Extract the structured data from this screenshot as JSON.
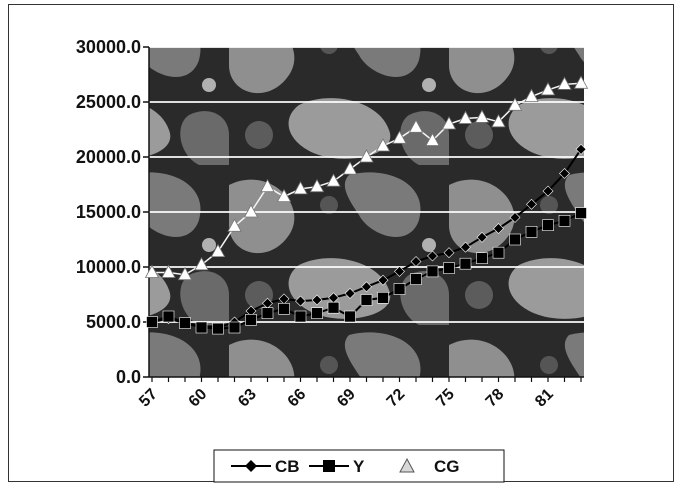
{
  "chart_data": {
    "type": "line",
    "title": "",
    "xlabel": "",
    "ylabel": "",
    "x": [
      57,
      58,
      59,
      60,
      61,
      62,
      63,
      64,
      65,
      66,
      67,
      68,
      69,
      70,
      71,
      72,
      73,
      74,
      75,
      76,
      77,
      78,
      79,
      80,
      81,
      82,
      83
    ],
    "x_tick_labels": [
      "57",
      "60",
      "63",
      "66",
      "69",
      "72",
      "75",
      "78",
      "81"
    ],
    "y_tick_labels": [
      "0.0",
      "5000.0",
      "10000.0",
      "15000.0",
      "20000.0",
      "25000.0",
      "30000.0"
    ],
    "ylim": [
      0,
      30000
    ],
    "grid": "horizontal",
    "legend_position": "bottom",
    "series": [
      {
        "name": "CB",
        "marker": "diamond",
        "color": "#000000",
        "values": [
          5000,
          5300,
          4900,
          4600,
          4500,
          5000,
          6000,
          6700,
          7100,
          6900,
          7000,
          7200,
          7600,
          8200,
          8800,
          9600,
          10500,
          11000,
          11300,
          11800,
          12700,
          13500,
          14500,
          15700,
          16900,
          18500,
          20700
        ]
      },
      {
        "name": "Y",
        "marker": "square",
        "color": "#000000",
        "values": [
          5000,
          5500,
          4900,
          4500,
          4400,
          4500,
          5200,
          5800,
          6200,
          5500,
          5800,
          6300,
          5500,
          7000,
          7200,
          8000,
          8900,
          9600,
          9900,
          10300,
          10800,
          11300,
          12500,
          13200,
          13800,
          14200,
          14900
        ]
      },
      {
        "name": "CG",
        "marker": "triangle",
        "color": "#ffffff",
        "values": [
          9500,
          9500,
          9300,
          10200,
          11400,
          13700,
          15000,
          17300,
          16400,
          17100,
          17300,
          17800,
          18900,
          20000,
          21000,
          21700,
          22700,
          21500,
          23000,
          23500,
          23600,
          23200,
          24700,
          25500,
          26100,
          26600,
          26700
        ]
      }
    ]
  }
}
